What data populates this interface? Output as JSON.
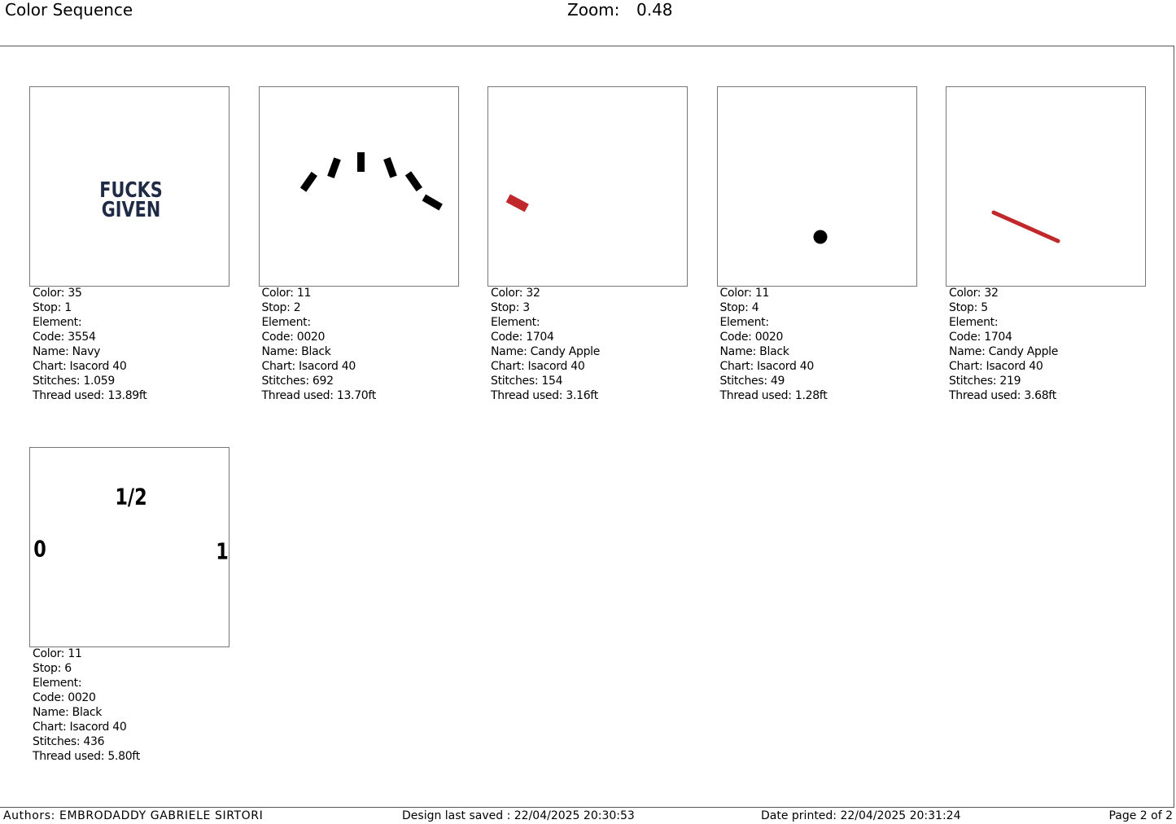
{
  "header": {
    "title": "Color Sequence",
    "zoom_label": "Zoom:",
    "zoom_value": "0.48"
  },
  "cards": [
    {
      "preview_text": [
        "FUCKS",
        "GIVEN"
      ],
      "lines": [
        "Color: 35",
        "Stop: 1",
        "Element:",
        "Code: 3554",
        "Name: Navy",
        "Chart: Isacord 40",
        "Stitches: 1.059",
        "Thread used: 13.89ft"
      ]
    },
    {
      "preview_text": [],
      "lines": [
        "Color: 11",
        "Stop: 2",
        "Element:",
        "Code: 0020",
        "Name: Black",
        "Chart: Isacord 40",
        "Stitches: 692",
        "Thread used: 13.70ft"
      ]
    },
    {
      "preview_text": [],
      "lines": [
        "Color: 32",
        "Stop: 3",
        "Element:",
        "Code: 1704",
        "Name: Candy Apple",
        "Chart: Isacord 40",
        "Stitches: 154",
        "Thread used: 3.16ft"
      ]
    },
    {
      "preview_text": [],
      "lines": [
        "Color: 11",
        "Stop: 4",
        "Element:",
        "Code: 0020",
        "Name: Black",
        "Chart: Isacord 40",
        "Stitches: 49",
        "Thread used: 1.28ft"
      ]
    },
    {
      "preview_text": [],
      "lines": [
        "Color: 32",
        "Stop: 5",
        "Element:",
        "Code: 1704",
        "Name: Candy Apple",
        "Chart: Isacord 40",
        "Stitches: 219",
        "Thread used: 3.68ft"
      ]
    },
    {
      "preview_text": [
        "1/2",
        "0",
        "1"
      ],
      "lines": [
        "Color: 11",
        "Stop: 6",
        "Element:",
        "Code: 0020",
        "Name: Black",
        "Chart: Isacord 40",
        "Stitches: 436",
        "Thread used: 5.80ft"
      ]
    }
  ],
  "footer": {
    "authors": "Authors: EMBRODADDY GABRIELE SIRTORI",
    "saved": "Design last saved : 22/04/2025 20:30:53",
    "printed": "Date printed: 22/04/2025 20:31:24",
    "page": "Page 2 of 2"
  }
}
